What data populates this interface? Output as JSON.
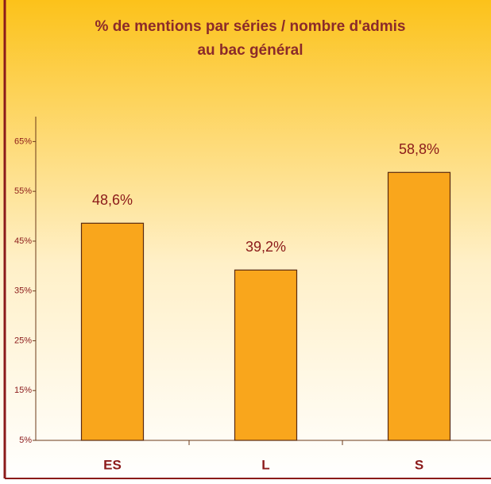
{
  "chart_data": {
    "type": "bar",
    "title": "% de mentions par séries / nombre d'admis",
    "subtitle": "au bac général",
    "categories": [
      "ES",
      "L",
      "S"
    ],
    "values": [
      48.6,
      39.2,
      58.8
    ],
    "value_labels": [
      "48,6%",
      "39,2%",
      "58,8%"
    ],
    "color": "#f9a61c",
    "ylim": [
      5,
      70
    ],
    "yticks": [
      {
        "value": 5,
        "label": "5%"
      },
      {
        "value": 15,
        "label": "15%"
      },
      {
        "value": 25,
        "label": "25%"
      },
      {
        "value": 35,
        "label": "35%"
      },
      {
        "value": 45,
        "label": "45%"
      },
      {
        "value": 55,
        "label": "55%"
      },
      {
        "value": 65,
        "label": "65%"
      }
    ],
    "grid": false
  }
}
